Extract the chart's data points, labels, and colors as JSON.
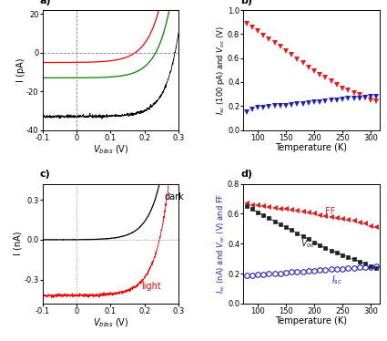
{
  "panel_a": {
    "xlabel": "V_bias (V)",
    "ylabel": "I (pA)",
    "xlim": [
      -0.1,
      0.3
    ],
    "ylim": [
      -40,
      22
    ],
    "yticks": [
      -40,
      -20,
      0,
      20
    ],
    "xticks": [
      -0.1,
      0.0,
      0.1,
      0.2,
      0.3
    ],
    "red_I0": 0.08,
    "red_Isc": 5.0,
    "red_n": 1.6,
    "green_I0": 0.04,
    "green_Isc": 13.0,
    "green_n": 1.55,
    "black_I0": 0.015,
    "black_Isc": 33.0,
    "black_n": 1.45,
    "Vt": 0.026
  },
  "panel_b": {
    "xlabel": "Temperature (K)",
    "ylabel": "I_{sc} (100 pA) and V_{oc} (V)",
    "xlim": [
      75,
      315
    ],
    "ylim": [
      0.0,
      1.0
    ],
    "yticks": [
      0.0,
      0.2,
      0.4,
      0.6,
      0.8,
      1.0
    ],
    "xticks": [
      100,
      150,
      200,
      250,
      300
    ],
    "voc_color": "#dd2222",
    "isc_color": "#2222bb",
    "temp_K": [
      80,
      90,
      100,
      110,
      120,
      130,
      140,
      150,
      160,
      170,
      180,
      190,
      200,
      210,
      220,
      230,
      240,
      250,
      260,
      270,
      280,
      290,
      300,
      310
    ],
    "voc_vals": [
      0.89,
      0.86,
      0.83,
      0.79,
      0.76,
      0.73,
      0.7,
      0.66,
      0.63,
      0.59,
      0.56,
      0.52,
      0.49,
      0.46,
      0.44,
      0.41,
      0.38,
      0.35,
      0.33,
      0.31,
      0.29,
      0.27,
      0.25,
      0.24
    ],
    "isc_vals": [
      0.15,
      0.17,
      0.185,
      0.19,
      0.195,
      0.2,
      0.2,
      0.205,
      0.21,
      0.215,
      0.22,
      0.225,
      0.23,
      0.235,
      0.24,
      0.245,
      0.25,
      0.255,
      0.26,
      0.265,
      0.265,
      0.27,
      0.275,
      0.28
    ]
  },
  "panel_c": {
    "xlabel": "V_bias (V)",
    "ylabel": "I (nA)",
    "xlim": [
      -0.1,
      0.3
    ],
    "ylim": [
      -0.48,
      0.42
    ],
    "yticks": [
      -0.3,
      0.0,
      0.3
    ],
    "xticks": [
      -0.1,
      0.0,
      0.1,
      0.2,
      0.3
    ],
    "dark_I0": 0.0008,
    "dark_n": 1.5,
    "light_Isc": 0.42,
    "light_I0": 0.0008,
    "light_n": 1.5,
    "Vt": 0.026
  },
  "panel_d": {
    "xlabel": "Temperature (K)",
    "ylabel": "I_{sc} (nA) and V_{oc} (V) and FF",
    "xlim": [
      75,
      315
    ],
    "ylim": [
      0.0,
      0.8
    ],
    "yticks": [
      0.0,
      0.2,
      0.4,
      0.6,
      0.8
    ],
    "xticks": [
      100,
      150,
      200,
      250,
      300
    ],
    "ff_color": "#dd2222",
    "voc_color": "#222222",
    "isc_color": "#2222bb",
    "temp_K": [
      80,
      90,
      100,
      110,
      120,
      130,
      140,
      150,
      160,
      170,
      180,
      190,
      200,
      210,
      220,
      230,
      240,
      250,
      260,
      270,
      280,
      290,
      300,
      310
    ],
    "ff_vals": [
      0.67,
      0.66,
      0.655,
      0.65,
      0.645,
      0.64,
      0.635,
      0.63,
      0.625,
      0.618,
      0.612,
      0.606,
      0.6,
      0.593,
      0.586,
      0.579,
      0.572,
      0.565,
      0.558,
      0.551,
      0.544,
      0.537,
      0.52,
      0.51
    ],
    "voc_vals": [
      0.65,
      0.63,
      0.61,
      0.59,
      0.57,
      0.55,
      0.53,
      0.51,
      0.49,
      0.47,
      0.45,
      0.43,
      0.41,
      0.39,
      0.37,
      0.355,
      0.34,
      0.325,
      0.31,
      0.295,
      0.28,
      0.265,
      0.25,
      0.235
    ],
    "isc_vals": [
      0.19,
      0.19,
      0.195,
      0.195,
      0.2,
      0.2,
      0.2,
      0.205,
      0.21,
      0.215,
      0.215,
      0.22,
      0.22,
      0.225,
      0.225,
      0.228,
      0.23,
      0.232,
      0.235,
      0.237,
      0.24,
      0.242,
      0.245,
      0.25
    ]
  },
  "background_color": "#ffffff",
  "font_size": 7,
  "label_font_size": 7
}
